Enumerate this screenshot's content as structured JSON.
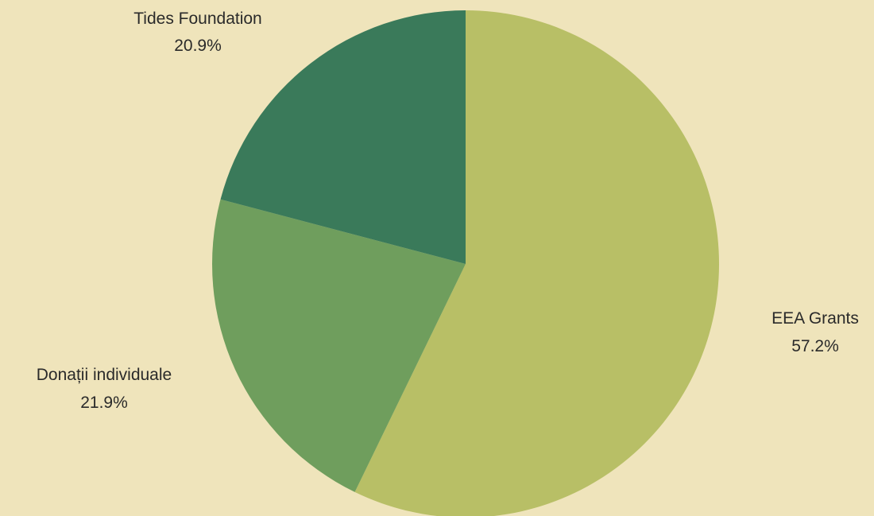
{
  "page": {
    "background": "#efe4bb"
  },
  "chart_data": {
    "type": "pie",
    "title": "",
    "start_angle_deg": 0,
    "direction": "clockwise",
    "slices": [
      {
        "label": "EEA Grants",
        "value": 57.2,
        "display": "57.2%",
        "color": "#b8bf66",
        "label_side": "right"
      },
      {
        "label": "Donații individuale",
        "value": 21.9,
        "display": "21.9%",
        "color": "#6f9e5d",
        "label_side": "left"
      },
      {
        "label": "Tides Foundation",
        "value": 20.9,
        "display": "20.9%",
        "color": "#3a7a5a",
        "label_side": "top"
      }
    ]
  }
}
